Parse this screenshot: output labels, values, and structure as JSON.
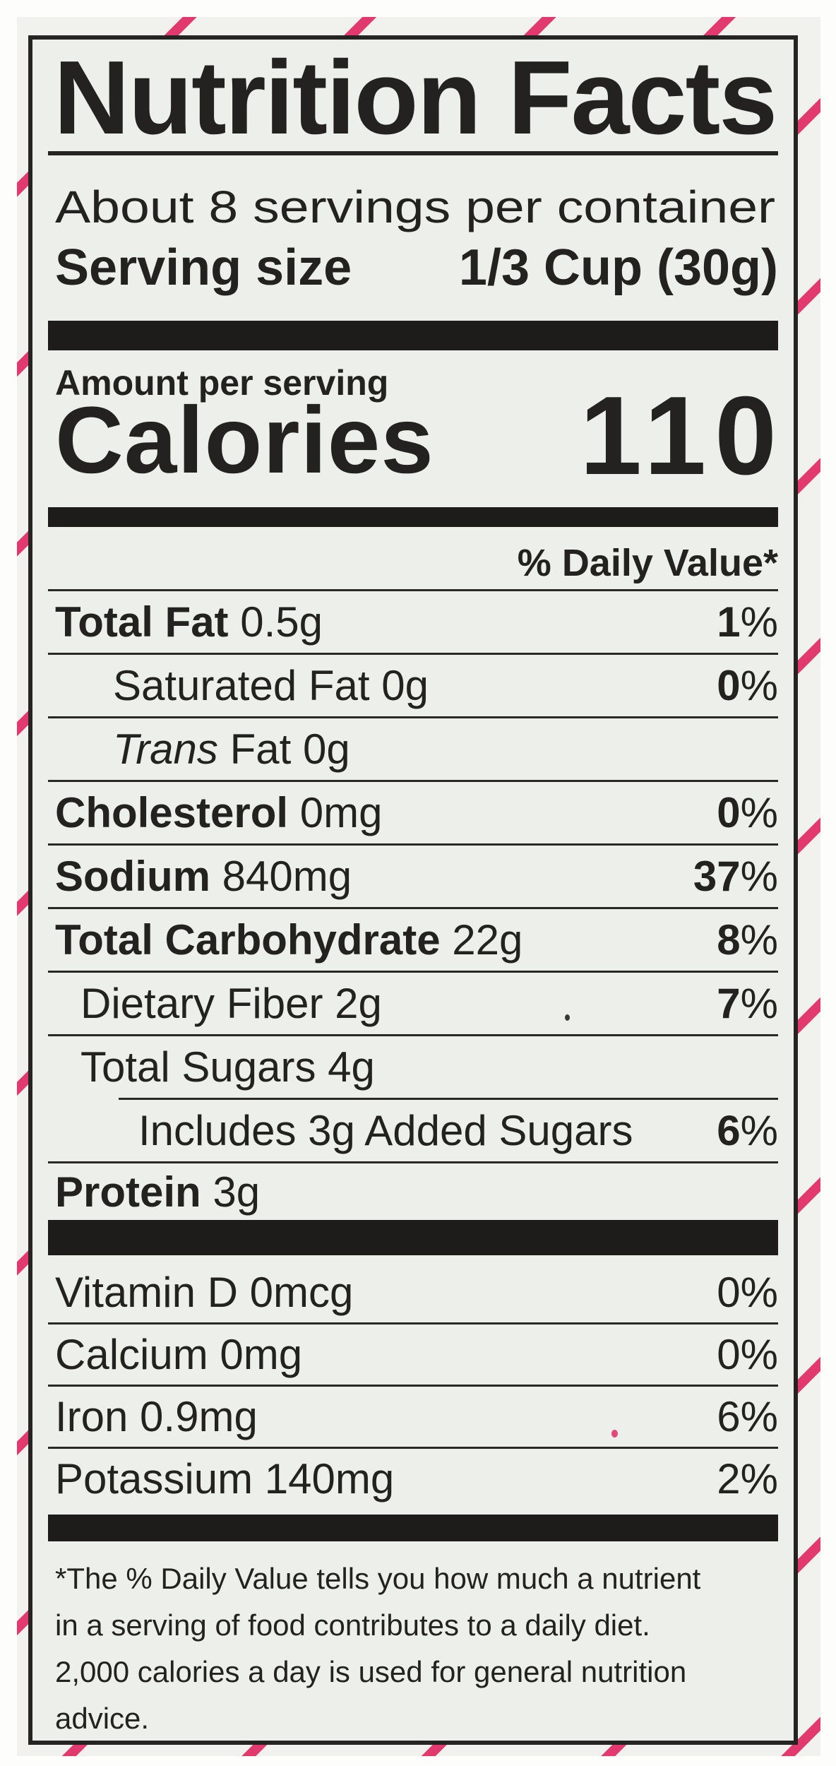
{
  "label": {
    "title": "Nutrition Facts",
    "servings_per_container": "About 8 servings per container",
    "serving_size_label": "Serving size",
    "serving_size_value": "1/3 Cup (30g)",
    "amount_per_serving": "Amount per serving",
    "calories_label": "Calories",
    "calories_value": "110",
    "daily_value_header": "% Daily Value*",
    "percent": "%",
    "rows": [
      {
        "bold": "Total Fat",
        "rest": " 0.5g",
        "dv": "1"
      },
      {
        "rest": "Saturated Fat 0g",
        "dv": "0"
      },
      {
        "italic": "Trans",
        "rest": " Fat 0g"
      },
      {
        "bold": "Cholesterol",
        "rest": " 0mg",
        "dv": "0"
      },
      {
        "bold": "Sodium",
        "rest": " 840mg",
        "dv": "37"
      },
      {
        "bold": "Total Carbohydrate",
        "rest": " 22g",
        "dv": "8"
      },
      {
        "rest": "Dietary Fiber 2g",
        "dv": "7"
      },
      {
        "rest": "Total Sugars 4g"
      },
      {
        "rest": "Includes 3g Added Sugars",
        "dv": "6"
      },
      {
        "bold": "Protein",
        "rest": " 3g"
      },
      {
        "rest": "Vitamin D 0mcg",
        "dv": "0%"
      },
      {
        "rest": "Calcium 0mg",
        "dv": "0%"
      },
      {
        "rest": "Iron 0.9mg",
        "dv": "6%"
      },
      {
        "rest": "Potassium 140mg",
        "dv": "2%"
      }
    ],
    "footnote_lines": [
      "*The % Daily Value tells you how much a nutrient",
      "in a serving of food contributes to a daily diet.",
      "2,000 calories a day is used for general nutrition",
      "advice."
    ]
  },
  "colors": {
    "ink": "#242220",
    "bar": "#1e1c1a",
    "label_bg": "#edf0ea",
    "package_bg": "#f1f2ee",
    "stripe_pink": "#e23a6e"
  }
}
